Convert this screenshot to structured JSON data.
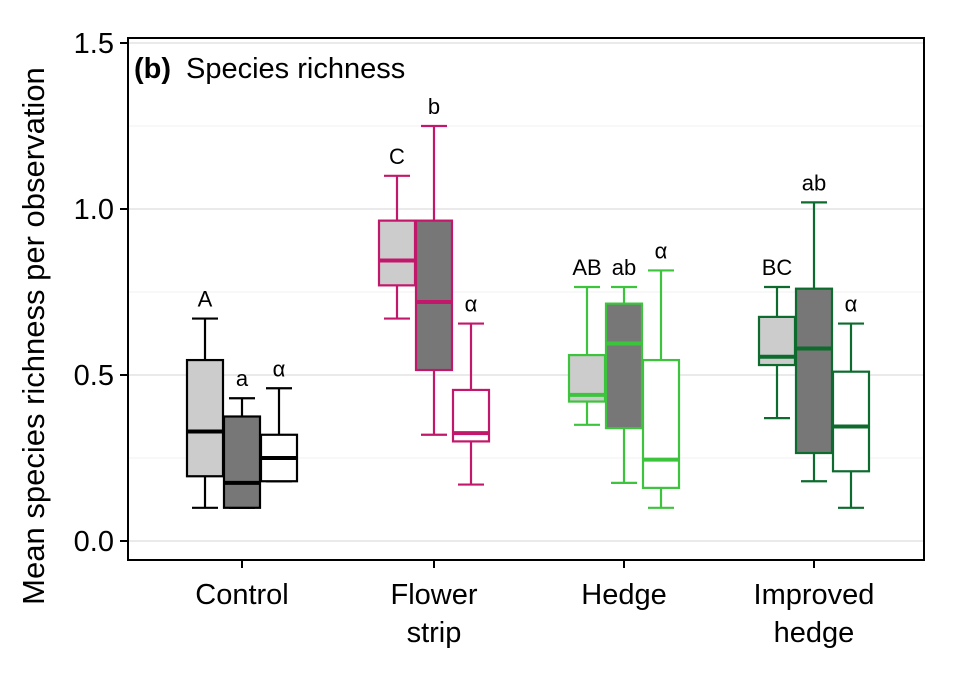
{
  "chart_data": {
    "type": "box",
    "panel_tag": "(b)",
    "title": "Species richness",
    "ylabel": "Mean species richness per observation",
    "xlabel": "",
    "ylim": [
      -0.05,
      1.5
    ],
    "yticks": [
      {
        "value": 0.0,
        "label": "0.0"
      },
      {
        "value": 0.5,
        "label": "0.5"
      },
      {
        "value": 1.0,
        "label": "1.0"
      },
      {
        "value": 1.5,
        "label": "1.5"
      }
    ],
    "minor_grid": [
      0.25,
      0.75,
      1.25
    ],
    "grid": true,
    "legend": "none",
    "groups": [
      {
        "name": "Control",
        "label_lines": [
          "Control"
        ],
        "color": "#000000",
        "boxes": [
          {
            "fill": "light",
            "min": 0.1,
            "q1": 0.195,
            "median": 0.33,
            "q3": 0.545,
            "max": 0.67,
            "letter": "A"
          },
          {
            "fill": "dark",
            "min": 0.1,
            "q1": 0.1,
            "median": 0.175,
            "q3": 0.375,
            "max": 0.43,
            "letter": "a"
          },
          {
            "fill": "white",
            "min": 0.18,
            "q1": 0.18,
            "median": 0.25,
            "q3": 0.32,
            "max": 0.46,
            "letter": "α"
          }
        ]
      },
      {
        "name": "Flower strip",
        "label_lines": [
          "Flower",
          "strip"
        ],
        "color": "#c2186b",
        "boxes": [
          {
            "fill": "light",
            "min": 0.67,
            "q1": 0.77,
            "median": 0.845,
            "q3": 0.965,
            "max": 1.1,
            "letter": "C"
          },
          {
            "fill": "dark",
            "min": 0.32,
            "q1": 0.515,
            "median": 0.72,
            "q3": 0.965,
            "max": 1.25,
            "letter": "b"
          },
          {
            "fill": "white",
            "min": 0.17,
            "q1": 0.3,
            "median": 0.325,
            "q3": 0.455,
            "max": 0.655,
            "letter": "α"
          }
        ]
      },
      {
        "name": "Hedge",
        "label_lines": [
          "Hedge"
        ],
        "color": "#3cc43c",
        "boxes": [
          {
            "fill": "light",
            "min": 0.35,
            "q1": 0.42,
            "median": 0.44,
            "q3": 0.56,
            "max": 0.765,
            "letter": "AB"
          },
          {
            "fill": "dark",
            "min": 0.175,
            "q1": 0.34,
            "median": 0.595,
            "q3": 0.715,
            "max": 0.765,
            "letter": "ab"
          },
          {
            "fill": "white",
            "min": 0.1,
            "q1": 0.16,
            "median": 0.245,
            "q3": 0.545,
            "max": 0.815,
            "letter": "α"
          }
        ]
      },
      {
        "name": "Improved hedge",
        "label_lines": [
          "Improved",
          "hedge"
        ],
        "color": "#0e6b2e",
        "boxes": [
          {
            "fill": "light",
            "min": 0.37,
            "q1": 0.53,
            "median": 0.555,
            "q3": 0.675,
            "max": 0.765,
            "letter": "BC"
          },
          {
            "fill": "dark",
            "min": 0.18,
            "q1": 0.265,
            "median": 0.58,
            "q3": 0.76,
            "max": 1.02,
            "letter": "ab"
          },
          {
            "fill": "white",
            "min": 0.1,
            "q1": 0.21,
            "median": 0.345,
            "q3": 0.51,
            "max": 0.655,
            "letter": "α"
          }
        ]
      }
    ],
    "fill_colors": {
      "light": "#cccccc",
      "dark": "#777777",
      "white": "#ffffff"
    }
  }
}
